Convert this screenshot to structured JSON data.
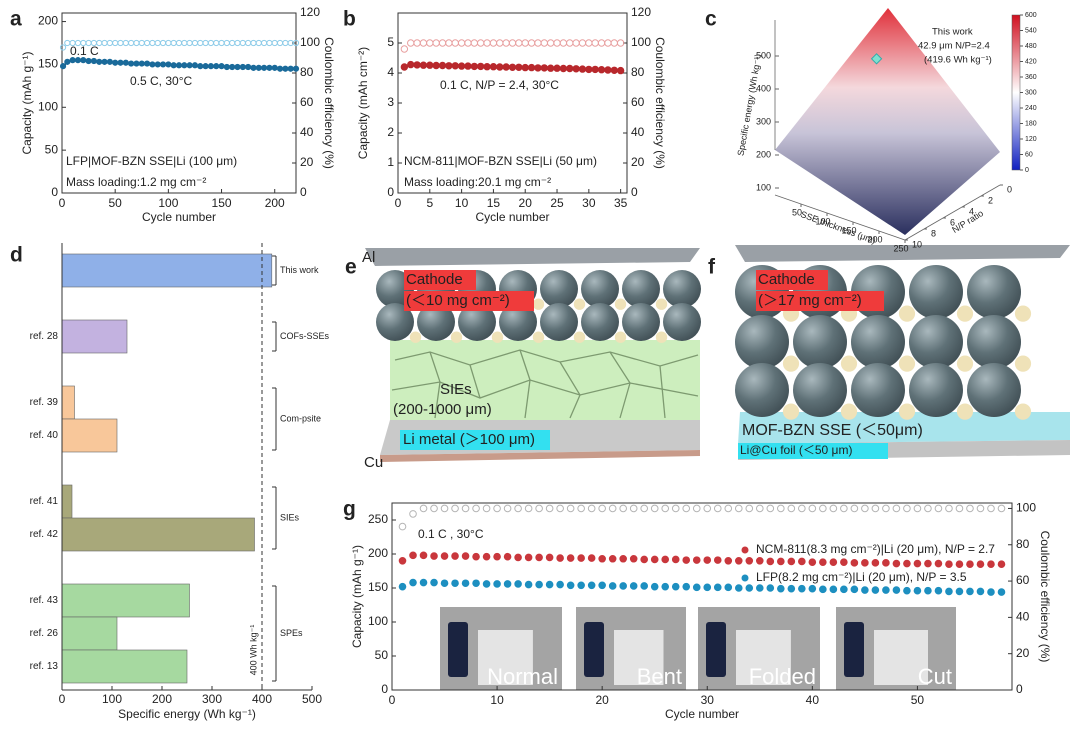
{
  "chart_data": [
    {
      "panel": "a",
      "type": "scatter",
      "xlabel": "Cycle number",
      "ylabel": "Capacity (mAh g⁻¹)",
      "y2label": "Coulombic efficiency (%)",
      "xlim": [
        0,
        220
      ],
      "xticks": [
        0,
        50,
        100,
        150,
        200
      ],
      "ylim": [
        0,
        210
      ],
      "yticks": [
        0,
        50,
        100,
        150,
        200
      ],
      "y2lim": [
        0,
        120
      ],
      "y2ticks": [
        0,
        20,
        40,
        60,
        80,
        100,
        120
      ],
      "annotations": [
        "0.1 C",
        "0.5 C, 30°C",
        "LFP|MOF-BZN SSE|Li (100 μm)",
        "Mass loading:1.2 mg cm⁻²"
      ],
      "x": [
        1,
        5,
        10,
        15,
        20,
        25,
        30,
        35,
        40,
        45,
        50,
        55,
        60,
        65,
        70,
        75,
        80,
        85,
        90,
        95,
        100,
        105,
        110,
        115,
        120,
        125,
        130,
        135,
        140,
        145,
        150,
        155,
        160,
        165,
        170,
        175,
        180,
        185,
        190,
        195,
        200,
        205,
        210,
        215,
        220
      ],
      "series": [
        {
          "color": "#8ccbe8",
          "marker": "hollow",
          "axis": "y2",
          "values": [
            97,
            100,
            100,
            100,
            100,
            100,
            100,
            100,
            100,
            100,
            100,
            100,
            100,
            100,
            100,
            100,
            100,
            100,
            100,
            100,
            100,
            100,
            100,
            100,
            100,
            100,
            100,
            100,
            100,
            100,
            100,
            100,
            100,
            100,
            100,
            100,
            100,
            100,
            100,
            100,
            100,
            100,
            100,
            100,
            100
          ]
        },
        {
          "color": "#1a6a9a",
          "marker": "filled",
          "values": [
            148,
            153,
            155,
            155,
            155,
            154,
            154,
            153,
            153,
            153,
            152,
            152,
            152,
            151,
            151,
            151,
            151,
            150,
            150,
            150,
            150,
            149,
            149,
            149,
            149,
            149,
            148,
            148,
            148,
            148,
            148,
            147,
            147,
            147,
            147,
            147,
            146,
            146,
            146,
            146,
            146,
            145,
            145,
            145,
            145
          ]
        }
      ]
    },
    {
      "panel": "b",
      "type": "scatter",
      "xlabel": "Cycle number",
      "ylabel": "Capacity (mAh cm⁻²)",
      "y2label": "Coulombic efficiency (%)",
      "xlim": [
        0,
        36
      ],
      "xticks": [
        0,
        5,
        10,
        15,
        20,
        25,
        30,
        35
      ],
      "ylim": [
        0,
        6
      ],
      "yticks": [
        0,
        1,
        2,
        3,
        4,
        5
      ],
      "y2lim": [
        0,
        120
      ],
      "y2ticks": [
        0,
        20,
        40,
        60,
        80,
        100,
        120
      ],
      "annotations": [
        "0.1 C, N/P = 2.4, 30°C",
        "NCM-811|MOF-BZN SSE|Li (50 μm)",
        "Mass loading:20.1 mg cm⁻²"
      ],
      "x": [
        1,
        2,
        3,
        4,
        5,
        6,
        7,
        8,
        9,
        10,
        11,
        12,
        13,
        14,
        15,
        16,
        17,
        18,
        19,
        20,
        21,
        22,
        23,
        24,
        25,
        26,
        27,
        28,
        29,
        30,
        31,
        32,
        33,
        34,
        35
      ],
      "series": [
        {
          "color": "#e8a0a0",
          "marker": "hollow",
          "axis": "y2",
          "values": [
            96,
            100,
            100,
            100,
            100,
            100,
            100,
            100,
            100,
            100,
            100,
            100,
            100,
            100,
            100,
            100,
            100,
            100,
            100,
            100,
            100,
            100,
            100,
            100,
            100,
            100,
            100,
            100,
            100,
            100,
            100,
            100,
            100,
            100,
            100
          ]
        },
        {
          "color": "#b8282c",
          "marker": "filled",
          "values": [
            4.2,
            4.28,
            4.27,
            4.26,
            4.26,
            4.25,
            4.25,
            4.24,
            4.24,
            4.23,
            4.23,
            4.22,
            4.22,
            4.21,
            4.21,
            4.2,
            4.2,
            4.19,
            4.19,
            4.18,
            4.18,
            4.17,
            4.17,
            4.16,
            4.16,
            4.15,
            4.15,
            4.14,
            4.13,
            4.12,
            4.12,
            4.11,
            4.1,
            4.09,
            4.08
          ]
        }
      ]
    },
    {
      "panel": "c",
      "type": "surface",
      "zlabel": "Specific energy (Wh kg⁻¹)",
      "xlabel": "SSE thickness (μm)",
      "ylabel": "N/P ratio",
      "xlim": [
        0,
        250
      ],
      "xticks": [
        50,
        100,
        150,
        200,
        250
      ],
      "ylim": [
        0,
        10
      ],
      "yticks": [
        0,
        2,
        4,
        6,
        8,
        10
      ],
      "zlim": [
        100,
        600
      ],
      "zticks": [
        100,
        200,
        300,
        400,
        500
      ],
      "clim": [
        0,
        600
      ],
      "cticks": [
        0,
        60,
        120,
        180,
        240,
        300,
        360,
        420,
        480,
        540,
        600
      ],
      "point": {
        "x": 42.9,
        "y": 2.4,
        "z": 419.6
      },
      "annotations": [
        "This work",
        "42.9 μm N/P=2.4",
        "(419.6 Wh kg⁻¹)"
      ]
    },
    {
      "panel": "d",
      "type": "hbar",
      "xlabel": "Specific energy (Wh kg⁻¹)",
      "xlim": [
        0,
        500
      ],
      "xticks": [
        0,
        100,
        200,
        300,
        400,
        500
      ],
      "categories": [
        null,
        "ref. 28",
        "ref. 39",
        "ref. 40",
        "ref. 41",
        "ref. 42",
        "ref. 43",
        "ref. 26",
        "ref. 13"
      ],
      "values": [
        419.6,
        130,
        25,
        110,
        20,
        385,
        255,
        110,
        250
      ],
      "colors": [
        "#8fb0e8",
        "#c3b2e0",
        "#f8c79a",
        "#f8c79a",
        "#a8a87a",
        "#a8a87a",
        "#a6d9a0",
        "#a6d9a0",
        "#a6d9a0"
      ],
      "groups": [
        {
          "label": "This work",
          "members": [
            0
          ]
        },
        {
          "label": "COFs-SSEs",
          "members": [
            1
          ]
        },
        {
          "label": "Com-psite",
          "members": [
            2,
            3
          ]
        },
        {
          "label": "SIEs",
          "members": [
            4,
            5
          ]
        },
        {
          "label": "SPEs",
          "members": [
            6,
            7,
            8
          ]
        }
      ],
      "reference_line": {
        "value": 400,
        "label": "400 Wh kg⁻¹"
      }
    },
    {
      "panel": "g",
      "type": "scatter",
      "xlabel": "Cycle number",
      "ylabel": "Capacity (mAh g⁻¹)",
      "y2label": "Coulombic efficiency (%)",
      "xlim": [
        0,
        59
      ],
      "xticks": [
        0,
        10,
        20,
        30,
        40,
        50
      ],
      "ylim": [
        0,
        275
      ],
      "yticks": [
        0,
        50,
        100,
        150,
        200,
        250
      ],
      "y2lim": [
        0,
        103
      ],
      "y2ticks": [
        0,
        20,
        40,
        60,
        80,
        100
      ],
      "annotations": [
        "0.1 C , 30°C"
      ],
      "photo_labels": [
        "Normal",
        "Bent",
        "Folded",
        "Cut"
      ],
      "x": [
        1,
        2,
        3,
        4,
        5,
        6,
        7,
        8,
        9,
        10,
        11,
        12,
        13,
        14,
        15,
        16,
        17,
        18,
        19,
        20,
        21,
        22,
        23,
        24,
        25,
        26,
        27,
        28,
        29,
        30,
        31,
        32,
        33,
        34,
        35,
        36,
        37,
        38,
        39,
        40,
        41,
        42,
        43,
        44,
        45,
        46,
        47,
        48,
        49,
        50,
        51,
        52,
        53,
        54,
        55,
        56,
        57,
        58
      ],
      "series": [
        {
          "color": "#b5b5b5",
          "marker": "hollow",
          "axis": "y2",
          "values": [
            90,
            97,
            100,
            100,
            100,
            100,
            100,
            100,
            100,
            100,
            100,
            100,
            100,
            100,
            100,
            100,
            100,
            100,
            100,
            100,
            100,
            100,
            100,
            100,
            100,
            100,
            100,
            100,
            100,
            100,
            100,
            100,
            100,
            100,
            100,
            100,
            100,
            100,
            100,
            100,
            100,
            100,
            100,
            100,
            100,
            100,
            100,
            100,
            100,
            100,
            100,
            100,
            100,
            100,
            100,
            100,
            100,
            100
          ]
        },
        {
          "name": "NCM-811(8.3 mg cm⁻²)|Li (20 μm), N/P = 2.7",
          "color": "#c9373c",
          "marker": "filled",
          "values": [
            190,
            198,
            198,
            197,
            197,
            197,
            197,
            196,
            196,
            196,
            196,
            195,
            195,
            195,
            195,
            194,
            194,
            194,
            194,
            193,
            193,
            193,
            193,
            192,
            192,
            192,
            192,
            191,
            191,
            191,
            191,
            190,
            190,
            190,
            190,
            189,
            189,
            189,
            189,
            188,
            188,
            188,
            188,
            187,
            187,
            187,
            187,
            186,
            186,
            186,
            186,
            186,
            185,
            185,
            185,
            185,
            185,
            185
          ]
        },
        {
          "name": "LFP(8.2 mg cm⁻²)|Li (20 μm), N/P = 3.5",
          "color": "#1d8fc0",
          "marker": "filled",
          "values": [
            152,
            158,
            158,
            158,
            157,
            157,
            157,
            157,
            156,
            156,
            156,
            156,
            155,
            155,
            155,
            155,
            154,
            154,
            154,
            154,
            153,
            153,
            153,
            153,
            152,
            152,
            152,
            152,
            151,
            151,
            151,
            151,
            150,
            150,
            150,
            150,
            149,
            149,
            149,
            149,
            148,
            148,
            148,
            148,
            147,
            147,
            147,
            147,
            146,
            146,
            146,
            146,
            145,
            145,
            145,
            145,
            144,
            144
          ]
        }
      ]
    }
  ],
  "diagrams": {
    "e": {
      "panel": "e",
      "top": "Al",
      "cathode": "Cathode",
      "loading": "(＜10 mg cm⁻²)",
      "electrolyte": "SIEs",
      "thickness": "(200-1000 μm)",
      "anode": "Li metal (＞100 μm)",
      "bottom": "Cu"
    },
    "f": {
      "panel": "f",
      "cathode": "Cathode",
      "loading": "(＞17 mg cm⁻²)",
      "electrolyte": "MOF-BZN SSE (＜50μm)",
      "anode": "Li@Cu foil (＜50 μm)"
    }
  }
}
